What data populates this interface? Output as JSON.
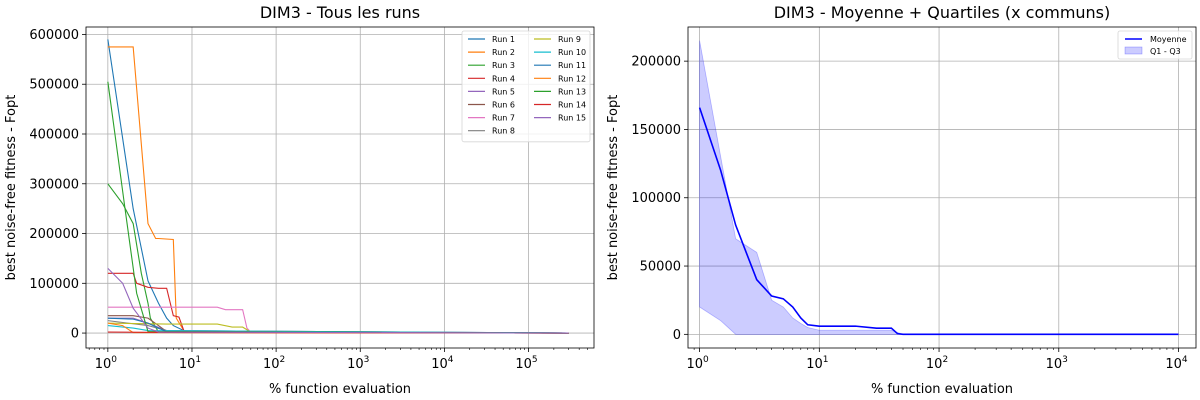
{
  "chart_data": [
    {
      "type": "line",
      "title": "DIM3 - Tous les runs",
      "xlabel": "% function evaluation",
      "ylabel": "best noise-free fitness - Fopt",
      "xscale": "log",
      "xlim": [
        0.55,
        600000
      ],
      "ylim": [
        -30000,
        615000
      ],
      "xticks": [
        1,
        10,
        100,
        1000,
        10000,
        100000
      ],
      "xtick_labels": [
        [
          "10",
          "0"
        ],
        [
          "10",
          "1"
        ],
        [
          "10",
          "2"
        ],
        [
          "10",
          "3"
        ],
        [
          "10",
          "4"
        ],
        [
          "10",
          "5"
        ]
      ],
      "yticks": [
        0,
        100000,
        200000,
        300000,
        400000,
        500000,
        600000
      ],
      "ytick_labels": [
        "0",
        "100000",
        "200000",
        "300000",
        "400000",
        "500000",
        "600000"
      ],
      "grid": true,
      "legend": "upper right, 2 columns",
      "series": [
        {
          "name": "Run 1",
          "color": "#1f77b4",
          "x": [
            1,
            2,
            3,
            4,
            5,
            6,
            8,
            10,
            300000
          ],
          "y": [
            590000,
            250000,
            105000,
            60000,
            30000,
            15000,
            5000,
            2000,
            0
          ]
        },
        {
          "name": "Run 2",
          "color": "#ff7f0e",
          "x": [
            1,
            2,
            3,
            3.7,
            4,
            6,
            6.5,
            8,
            10,
            300000
          ],
          "y": [
            575000,
            575000,
            220000,
            190000,
            190000,
            188000,
            30000,
            5000,
            2000,
            0
          ]
        },
        {
          "name": "Run 3",
          "color": "#2ca02c",
          "x": [
            1,
            1.5,
            2,
            2.5,
            3,
            3.2,
            4,
            300000
          ],
          "y": [
            300000,
            260000,
            220000,
            120000,
            60000,
            30000,
            2000,
            0
          ]
        },
        {
          "name": "Run 4",
          "color": "#d62728",
          "x": [
            1,
            2,
            2.2,
            3,
            4,
            5,
            6,
            7,
            8,
            10,
            300000
          ],
          "y": [
            120000,
            120000,
            100000,
            92000,
            90000,
            90000,
            35000,
            32000,
            5000,
            2000,
            0
          ]
        },
        {
          "name": "Run 5",
          "color": "#9467bd",
          "x": [
            1,
            2,
            3,
            5,
            300000
          ],
          "y": [
            30000,
            30000,
            20000,
            5000,
            0
          ]
        },
        {
          "name": "Run 6",
          "color": "#8c564b",
          "x": [
            1,
            2,
            3,
            4,
            5,
            300000
          ],
          "y": [
            35000,
            35000,
            30000,
            15000,
            3000,
            0
          ]
        },
        {
          "name": "Run 7",
          "color": "#e377c2",
          "x": [
            1,
            20,
            25,
            40,
            45,
            50,
            300000
          ],
          "y": [
            52000,
            52000,
            47000,
            47000,
            10000,
            2000,
            0
          ]
        },
        {
          "name": "Run 8",
          "color": "#7f7f7f",
          "x": [
            1,
            3,
            5,
            300000
          ],
          "y": [
            25000,
            15000,
            5000,
            0
          ]
        },
        {
          "name": "Run 9",
          "color": "#bcbd22",
          "x": [
            1,
            5,
            20,
            30,
            40,
            50,
            300000
          ],
          "y": [
            20000,
            18000,
            18000,
            12000,
            12000,
            2000,
            0
          ]
        },
        {
          "name": "Run 10",
          "color": "#17becf",
          "x": [
            1,
            2,
            3,
            300000
          ],
          "y": [
            15000,
            10000,
            5000,
            0
          ]
        },
        {
          "name": "Run 11",
          "color": "#1f77b4",
          "x": [
            1,
            2,
            3,
            4,
            5,
            300000
          ],
          "y": [
            30000,
            28000,
            20000,
            10000,
            3000,
            0
          ]
        },
        {
          "name": "Run 12",
          "color": "#ff7f0e",
          "x": [
            1,
            1.5,
            2,
            300000
          ],
          "y": [
            20000,
            15000,
            1000,
            0
          ]
        },
        {
          "name": "Run 13",
          "color": "#2ca02c",
          "x": [
            1,
            1.6,
            2.2,
            3,
            300000
          ],
          "y": [
            505000,
            250000,
            80000,
            3000,
            0
          ]
        },
        {
          "name": "Run 14",
          "color": "#d62728",
          "x": [
            1,
            10,
            300000
          ],
          "y": [
            2000,
            1000,
            0
          ]
        },
        {
          "name": "Run 15",
          "color": "#9467bd",
          "x": [
            1,
            1.5,
            2,
            3,
            4,
            300000
          ],
          "y": [
            130000,
            100000,
            50000,
            10000,
            2000,
            0
          ]
        }
      ]
    },
    {
      "type": "area",
      "title": "DIM3 - Moyenne + Quartiles (x communs)",
      "xlabel": "% function evaluation",
      "ylabel": "best noise-free fitness - Fopt",
      "xscale": "log",
      "xlim": [
        0.8,
        14000
      ],
      "ylim": [
        -10000,
        225000
      ],
      "xticks": [
        1,
        10,
        100,
        1000,
        10000
      ],
      "xtick_labels": [
        [
          "10",
          "0"
        ],
        [
          "10",
          "1"
        ],
        [
          "10",
          "2"
        ],
        [
          "10",
          "3"
        ],
        [
          "10",
          "4"
        ]
      ],
      "yticks": [
        0,
        50000,
        100000,
        150000,
        200000
      ],
      "ytick_labels": [
        "0",
        "50000",
        "100000",
        "150000",
        "200000"
      ],
      "grid": true,
      "legend": "upper right",
      "mean": {
        "name": "Moyenne",
        "color": "#0000ff",
        "x": [
          1,
          1.5,
          2,
          3,
          4,
          5,
          6,
          7,
          8,
          10,
          20,
          30,
          40,
          45,
          50,
          100,
          10000
        ],
        "y": [
          166000,
          120000,
          80000,
          40000,
          28000,
          26000,
          20000,
          12000,
          7000,
          6000,
          6000,
          4500,
          4500,
          500,
          0,
          0,
          0
        ]
      },
      "band": {
        "name": "Q1 - Q3",
        "color": "#0000ff",
        "x": [
          1,
          1.5,
          2,
          3,
          4,
          5,
          6,
          7,
          8,
          10,
          20,
          30,
          40,
          50,
          100,
          10000
        ],
        "q1": [
          20000,
          10000,
          0,
          0,
          0,
          0,
          0,
          0,
          0,
          0,
          0,
          0,
          0,
          0,
          0,
          0
        ],
        "q3": [
          215000,
          130000,
          70000,
          60000,
          25000,
          20000,
          12000,
          8000,
          5000,
          3000,
          3000,
          3000,
          3000,
          0,
          0,
          0
        ]
      }
    }
  ]
}
